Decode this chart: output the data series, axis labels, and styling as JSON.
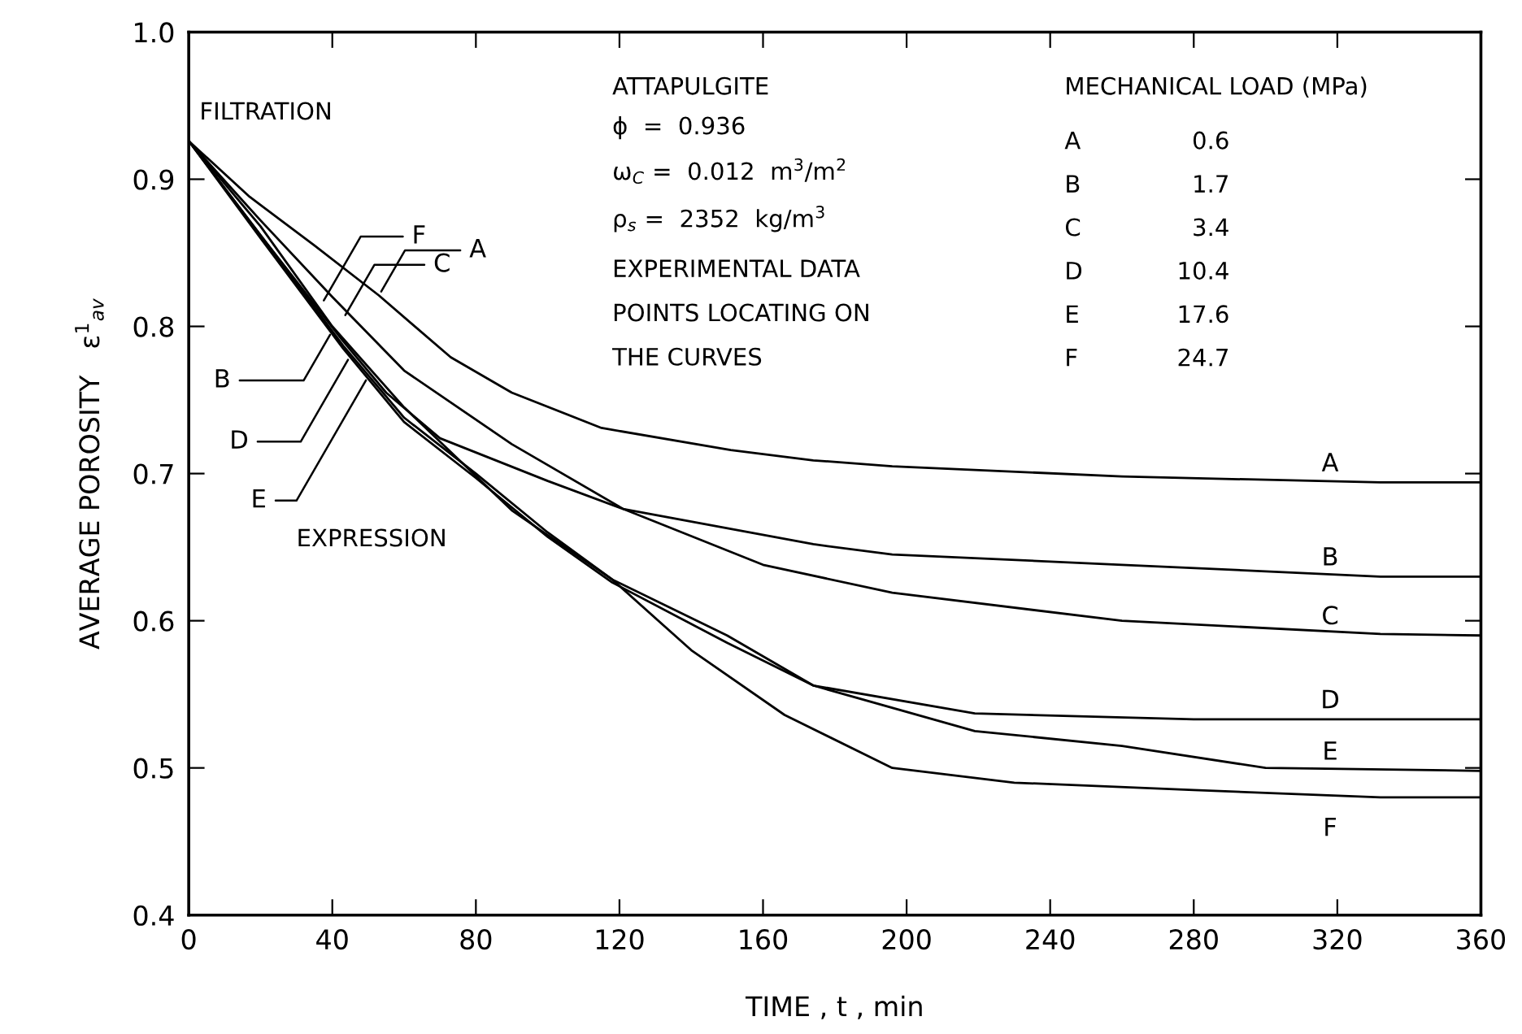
{
  "chart_data": {
    "type": "line",
    "xlabel": "TIME , t , min",
    "ylabel": "AVERAGE POROSITY   ε$^{1}$$_{av}$",
    "xlim": [
      0,
      360
    ],
    "ylim": [
      0.4,
      1.0
    ],
    "xticks": [
      0,
      40,
      80,
      120,
      160,
      200,
      240,
      280,
      320,
      360
    ],
    "yticks": [
      {
        "value": 0.4,
        "label": "0.4"
      },
      {
        "value": 0.5,
        "label": "0.5"
      },
      {
        "value": 0.6,
        "label": "0.6"
      },
      {
        "value": 0.7,
        "label": "0.7"
      },
      {
        "value": 0.8,
        "label": "0.8"
      },
      {
        "value": 0.9,
        "label": "0.9"
      },
      {
        "value": 1.0,
        "label": "1.0"
      }
    ],
    "grid": false,
    "legend": false,
    "marker": "none",
    "line_style": "solid",
    "series": [
      {
        "name": "A",
        "color": "#000000",
        "x": [
          0,
          17,
          35,
          53,
          73,
          90,
          115,
          151,
          174,
          196,
          260,
          332,
          360
        ],
        "values": [
          0.926,
          0.888,
          0.855,
          0.821,
          0.779,
          0.755,
          0.731,
          0.716,
          0.709,
          0.705,
          0.698,
          0.694,
          0.694
        ]
      },
      {
        "name": "B",
        "color": "#000000",
        "x": [
          0,
          20,
          43,
          55,
          70,
          100,
          121,
          174,
          196,
          260,
          332,
          360
        ],
        "values": [
          0.926,
          0.862,
          0.79,
          0.755,
          0.724,
          0.695,
          0.676,
          0.652,
          0.645,
          0.638,
          0.63,
          0.63
        ]
      },
      {
        "name": "C",
        "color": "#000000",
        "x": [
          0,
          20,
          40,
          60,
          90,
          121,
          160,
          196,
          260,
          332,
          360
        ],
        "values": [
          0.926,
          0.872,
          0.82,
          0.77,
          0.72,
          0.676,
          0.638,
          0.619,
          0.6,
          0.591,
          0.59
        ]
      },
      {
        "name": "D",
        "color": "#000000",
        "x": [
          0,
          20,
          43,
          60,
          80,
          100,
          118,
          150,
          174,
          219,
          280,
          360
        ],
        "values": [
          0.926,
          0.862,
          0.787,
          0.738,
          0.7,
          0.66,
          0.628,
          0.59,
          0.556,
          0.537,
          0.533,
          0.533
        ]
      },
      {
        "name": "E",
        "color": "#000000",
        "x": [
          0,
          20,
          43,
          60,
          80,
          100,
          118,
          150,
          174,
          219,
          260,
          300,
          360
        ],
        "values": [
          0.926,
          0.86,
          0.785,
          0.735,
          0.697,
          0.657,
          0.626,
          0.585,
          0.556,
          0.525,
          0.515,
          0.5,
          0.498
        ]
      },
      {
        "name": "F",
        "color": "#000000",
        "x": [
          0,
          20,
          40,
          60,
          90,
          118,
          140,
          166,
          196,
          230,
          280,
          332,
          360
        ],
        "values": [
          0.926,
          0.868,
          0.8,
          0.745,
          0.675,
          0.628,
          0.58,
          0.536,
          0.5,
          0.49,
          0.485,
          0.48,
          0.48
        ]
      }
    ],
    "annotations": [
      "FILTRATION",
      "EXPRESSION",
      "ATTAPULGITE",
      "ϕ  =  0.936",
      "ω$_{C}$ =  0.012  m$^{3}$/m$^{2}$",
      "ρ$_{s}$ =  2352  kg/m$^{3}$",
      "EXPERIMENTAL DATA",
      "POINTS LOCATING ON",
      "THE CURVES",
      "MECHANICAL LOAD (MPa)",
      "A",
      "B",
      "C",
      "D",
      "E",
      "F",
      "0.6",
      "1.7",
      "3.4",
      "10.4",
      "17.6",
      "24.7",
      {
        "text": "F",
        "x": 37,
        "y": 0.815
      },
      {
        "text": "C",
        "x": 43,
        "y": 0.805
      },
      {
        "text": "A",
        "x": 53,
        "y": 0.821
      },
      {
        "text": "B",
        "x": 40,
        "y": 0.797
      },
      {
        "text": "D",
        "x": 45,
        "y": 0.78
      },
      {
        "text": "E",
        "x": 50,
        "y": 0.766
      }
    ]
  }
}
